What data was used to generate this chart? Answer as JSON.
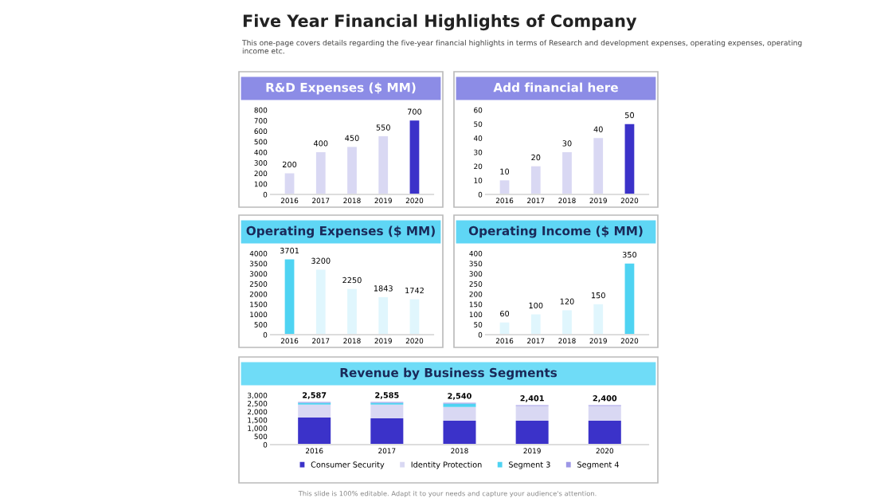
{
  "chart_data": [
    {
      "type": "other",
      "title": "Five Year Financial Highlights of Company",
      "subtitle": "This one-page covers details regarding the five-year financial highlights in terms of Research and development expenses, operating expenses, operating income etc.",
      "annotations": [
        "This slide is 100% editable. Adapt it to your needs and capture your audience's attention."
      ]
    },
    {
      "type": "bar",
      "title": "R&D Expenses ($ MM)",
      "categories": [
        "2016",
        "2017",
        "2018",
        "2019",
        "2020"
      ],
      "values": [
        200,
        400,
        450,
        550,
        700
      ],
      "colors": [
        "#d9d8f3",
        "#d9d8f3",
        "#d9d8f3",
        "#d9d8f3",
        "#3b32c9"
      ],
      "ylim": [
        0,
        800
      ],
      "yticks": [
        0,
        100,
        200,
        300,
        400,
        500,
        600,
        700,
        800
      ],
      "data_labels": true
    },
    {
      "type": "bar",
      "title": "Add financial here",
      "categories": [
        "2016",
        "2017",
        "2018",
        "2019",
        "2020"
      ],
      "values": [
        10,
        20,
        30,
        40,
        50
      ],
      "colors": [
        "#d9d8f3",
        "#d9d8f3",
        "#d9d8f3",
        "#d9d8f3",
        "#3b32c9"
      ],
      "ylim": [
        0,
        60
      ],
      "yticks": [
        0,
        10,
        20,
        30,
        40,
        50,
        60
      ],
      "data_labels": true
    },
    {
      "type": "bar",
      "title": "Operating Expenses ($ MM)",
      "categories": [
        "2016",
        "2017",
        "2018",
        "2019",
        "2020"
      ],
      "values": [
        3701,
        3200,
        2250,
        1843,
        1742
      ],
      "colors": [
        "#4fd3f2",
        "#e0f6fd",
        "#e0f6fd",
        "#e0f6fd",
        "#e0f6fd"
      ],
      "ylim": [
        0,
        4000
      ],
      "yticks": [
        0,
        500,
        1000,
        1500,
        2000,
        2500,
        3000,
        3500,
        4000
      ],
      "data_labels": true
    },
    {
      "type": "bar",
      "title": "Operating Income ($ MM)",
      "categories": [
        "2016",
        "2017",
        "2018",
        "2019",
        "2020"
      ],
      "values": [
        60,
        100,
        120,
        150,
        350
      ],
      "colors": [
        "#e0f6fd",
        "#e0f6fd",
        "#e0f6fd",
        "#e0f6fd",
        "#4fd3f2"
      ],
      "ylim": [
        0,
        400
      ],
      "yticks": [
        0,
        50,
        100,
        150,
        200,
        250,
        300,
        350,
        400
      ],
      "data_labels": true
    },
    {
      "type": "bar",
      "stacked": true,
      "title": "Revenue by Business Segments",
      "categories": [
        "2016",
        "2017",
        "2018",
        "2019",
        "2020"
      ],
      "legend": "bottom",
      "series": [
        {
          "name": "Consumer Security",
          "color": "#3b32c9",
          "values": [
            1650,
            1600,
            1450,
            1450,
            1450
          ]
        },
        {
          "name": "Identity Protection",
          "color": "#d9d8f3",
          "values": [
            787,
            835,
            840,
            901,
            900
          ]
        },
        {
          "name": "Segment 3",
          "color": "#4fd3f2",
          "values": [
            100,
            100,
            200,
            0,
            0
          ]
        },
        {
          "name": "Segment 4",
          "color": "#9d97e6",
          "values": [
            50,
            50,
            50,
            50,
            50
          ]
        }
      ],
      "totals": [
        "2,587",
        "2,585",
        "2,540",
        "2,401",
        "2,400"
      ],
      "ylim": [
        0,
        3000
      ],
      "yticks": [
        0,
        500,
        {
          "value": 1000,
          "label": "1,000"
        },
        {
          "value": 1500,
          "label": "1,500"
        },
        {
          "value": 2000,
          "label": "2,000"
        },
        {
          "value": 2500,
          "label": "2,500"
        },
        {
          "value": 3000,
          "label": "3,000"
        }
      ]
    }
  ]
}
